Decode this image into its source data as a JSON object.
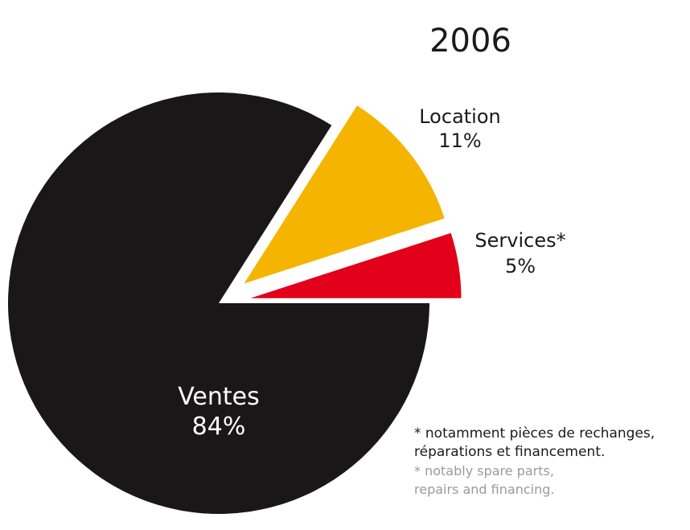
{
  "chart_data": {
    "type": "pie",
    "title": "2006",
    "slices": [
      {
        "label": "Ventes",
        "value": 84,
        "value_label": "84%",
        "color": "#1a1718",
        "exploded": false
      },
      {
        "label": "Location",
        "value": 11,
        "value_label": "11%",
        "color": "#f5b400",
        "exploded": true
      },
      {
        "label": "Services*",
        "value": 5,
        "value_label": "5%",
        "color": "#e2001a",
        "exploded": true
      }
    ]
  },
  "footnote": {
    "fr_line1": "* notamment pièces de rechanges,",
    "fr_line2": "réparations et financement.",
    "en_line1": "* notably spare parts,",
    "en_line2": "repairs and financing."
  }
}
